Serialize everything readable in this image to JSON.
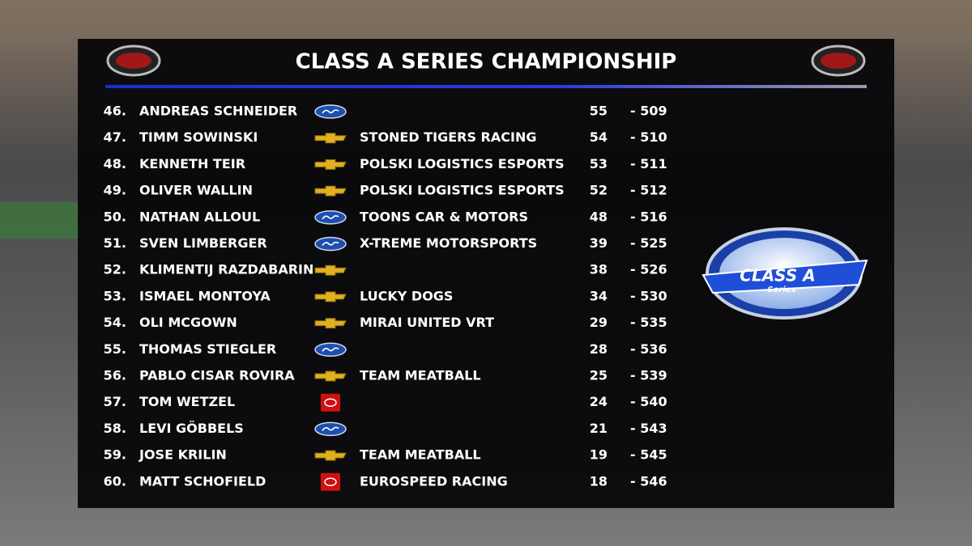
{
  "header": {
    "title": "CLASS A SERIES CHAMPIONSHIP"
  },
  "series_logo": {
    "title": "CLASS A",
    "subtitle": "Series"
  },
  "table": {
    "rows": [
      {
        "position": {
          "value": 46,
          "label": "46."
        },
        "driver": "ANDREAS SCHNEIDER",
        "make": "ford",
        "team": null,
        "points": 55,
        "gap": {
          "value": -509,
          "label": "- 509"
        }
      },
      {
        "position": {
          "value": 47,
          "label": "47."
        },
        "driver": "TIMM SOWINSKI",
        "make": "chevrolet",
        "team": "STONED TIGERS RACING",
        "points": 54,
        "gap": {
          "value": -510,
          "label": "- 510"
        }
      },
      {
        "position": {
          "value": 48,
          "label": "48."
        },
        "driver": "KENNETH TEIR",
        "make": "chevrolet",
        "team": "POLSKI LOGISTICS ESPORTS",
        "points": 53,
        "gap": {
          "value": -511,
          "label": "- 511"
        }
      },
      {
        "position": {
          "value": 49,
          "label": "49."
        },
        "driver": "OLIVER WALLIN",
        "make": "chevrolet",
        "team": "POLSKI LOGISTICS ESPORTS",
        "points": 52,
        "gap": {
          "value": -512,
          "label": "- 512"
        }
      },
      {
        "position": {
          "value": 50,
          "label": "50."
        },
        "driver": "NATHAN ALLOUL",
        "make": "ford",
        "team": "TOONS CAR & MOTORS",
        "points": 48,
        "gap": {
          "value": -516,
          "label": "- 516"
        }
      },
      {
        "position": {
          "value": 51,
          "label": "51."
        },
        "driver": "SVEN LIMBERGER",
        "make": "ford",
        "team": "X-TREME MOTORSPORTS",
        "points": 39,
        "gap": {
          "value": -525,
          "label": "- 525"
        }
      },
      {
        "position": {
          "value": 52,
          "label": "52."
        },
        "driver": "KLIMENTIJ RAZDABARIN",
        "make": "chevrolet",
        "team": null,
        "points": 38,
        "gap": {
          "value": -526,
          "label": "- 526"
        }
      },
      {
        "position": {
          "value": 53,
          "label": "53."
        },
        "driver": "ISMAEL MONTOYA",
        "make": "chevrolet",
        "team": "LUCKY DOGS",
        "points": 34,
        "gap": {
          "value": -530,
          "label": "- 530"
        }
      },
      {
        "position": {
          "value": 54,
          "label": "54."
        },
        "driver": "OLI MCGOWN",
        "make": "chevrolet",
        "team": "MIRAI UNITED VRT",
        "points": 29,
        "gap": {
          "value": -535,
          "label": "- 535"
        }
      },
      {
        "position": {
          "value": 55,
          "label": "55."
        },
        "driver": "THOMAS STIEGLER",
        "make": "ford",
        "team": null,
        "points": 28,
        "gap": {
          "value": -536,
          "label": "- 536"
        }
      },
      {
        "position": {
          "value": 56,
          "label": "56."
        },
        "driver": "PABLO CISAR ROVIRA",
        "make": "chevrolet",
        "team": "TEAM MEATBALL",
        "points": 25,
        "gap": {
          "value": -539,
          "label": "- 539"
        }
      },
      {
        "position": {
          "value": 57,
          "label": "57."
        },
        "driver": "TOM WETZEL",
        "make": "toyota",
        "team": null,
        "points": 24,
        "gap": {
          "value": -540,
          "label": "- 540"
        }
      },
      {
        "position": {
          "value": 58,
          "label": "58."
        },
        "driver": "LEVI GÖBBELS",
        "make": "ford",
        "team": null,
        "points": 21,
        "gap": {
          "value": -543,
          "label": "- 543"
        }
      },
      {
        "position": {
          "value": 59,
          "label": "59."
        },
        "driver": "JOSE KRILIN",
        "make": "chevrolet",
        "team": "TEAM MEATBALL",
        "points": 19,
        "gap": {
          "value": -545,
          "label": "- 545"
        }
      },
      {
        "position": {
          "value": 60,
          "label": "60."
        },
        "driver": "MATT SCHOFIELD",
        "make": "toyota",
        "team": "EUROSPEED RACING",
        "points": 18,
        "gap": {
          "value": -546,
          "label": "- 546"
        }
      }
    ]
  }
}
